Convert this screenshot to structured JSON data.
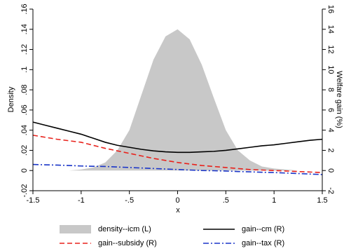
{
  "chart_data": {
    "type": "line",
    "x": [
      -1.5,
      -1.375,
      -1.25,
      -1.125,
      -1,
      -0.875,
      -0.75,
      -0.625,
      -0.5,
      -0.375,
      -0.25,
      -0.125,
      0,
      0.125,
      0.25,
      0.375,
      0.5,
      0.625,
      0.75,
      0.875,
      1,
      1.125,
      1.25,
      1.375,
      1.5
    ],
    "xlabel": "x",
    "ylabel": "Density",
    "y2label": "Welfare gain (%)",
    "xlim": [
      -1.5,
      1.5
    ],
    "xticks": [
      -1.5,
      -1,
      {
        "value": -0.5,
        "label": "-.5"
      },
      0,
      {
        "value": 0.5,
        "label": ".5"
      },
      1,
      1.5
    ],
    "ylim": [
      -0.02,
      0.16
    ],
    "yticks": [
      {
        "value": -0.02,
        "label": "-.02"
      },
      0,
      {
        "value": 0.02,
        "label": ".02"
      },
      {
        "value": 0.04,
        "label": ".04"
      },
      {
        "value": 0.06,
        "label": ".06"
      },
      {
        "value": 0.08,
        "label": ".08"
      },
      {
        "value": 0.1,
        "label": ".1"
      },
      {
        "value": 0.12,
        "label": ".12"
      },
      {
        "value": 0.14,
        "label": ".14"
      },
      {
        "value": 0.16,
        "label": ".16"
      }
    ],
    "y2lim": [
      -2,
      16
    ],
    "y2ticks": [
      -2,
      0,
      2,
      4,
      6,
      8,
      10,
      12,
      14,
      16
    ],
    "series": [
      {
        "name": "density--icm (L)",
        "color": "#c8c8c8",
        "style": "area",
        "values": [
          0,
          0,
          0,
          0,
          0.001,
          0.003,
          0.008,
          0.02,
          0.04,
          0.075,
          0.11,
          0.133,
          0.14,
          0.13,
          0.105,
          0.072,
          0.04,
          0.02,
          0.01,
          0.004,
          0.002,
          0.001,
          0,
          0,
          0
        ]
      },
      {
        "name": "gain--cm (R)",
        "color": "#000000",
        "style": "solid",
        "axis": "y2",
        "values": [
          4.8,
          4.5,
          4.2,
          3.9,
          3.6,
          3.2,
          2.8,
          2.5,
          2.3,
          2.1,
          1.95,
          1.85,
          1.8,
          1.8,
          1.85,
          1.9,
          2.0,
          2.15,
          2.3,
          2.45,
          2.55,
          2.7,
          2.85,
          3.0,
          3.1
        ]
      },
      {
        "name": "gain--subsidy (R)",
        "color": "#e8211b",
        "style": "dash",
        "axis": "y2",
        "values": [
          3.5,
          3.3,
          3.1,
          2.95,
          2.8,
          2.5,
          2.2,
          1.95,
          1.7,
          1.45,
          1.2,
          1.0,
          0.8,
          0.65,
          0.5,
          0.4,
          0.3,
          0.2,
          0.1,
          0.05,
          0,
          -0.05,
          -0.1,
          -0.15,
          -0.2
        ]
      },
      {
        "name": "gain--tax (R)",
        "color": "#1a35c8",
        "style": "dashdot",
        "axis": "y2",
        "values": [
          0.6,
          0.57,
          0.54,
          0.5,
          0.45,
          0.42,
          0.4,
          0.35,
          0.3,
          0.25,
          0.2,
          0.15,
          0.1,
          0.05,
          0,
          -0.02,
          -0.05,
          -0.1,
          -0.13,
          -0.17,
          -0.2,
          -0.25,
          -0.3,
          -0.35,
          -0.4
        ]
      }
    ]
  }
}
